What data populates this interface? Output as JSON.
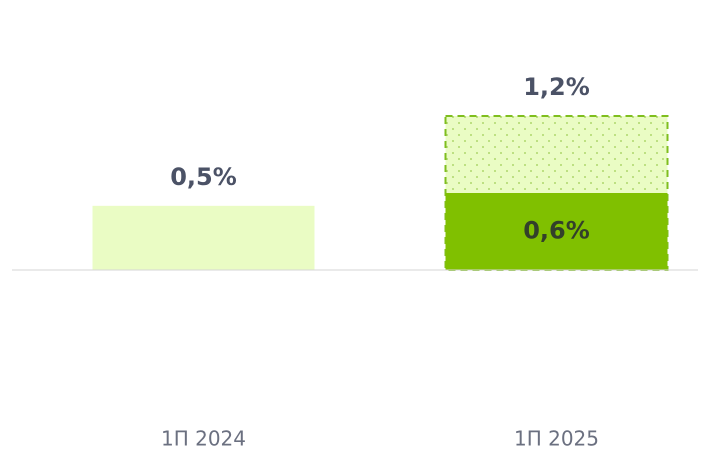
{
  "chart_data": {
    "type": "bar",
    "categories": [
      "1П 2024",
      "1П 2025"
    ],
    "ylim": [
      0,
      1.2
    ],
    "series": [
      {
        "values": [
          null,
          1.2
        ],
        "value_labels": [
          null,
          "1,2%"
        ],
        "color": "#eafcc4",
        "outline": "#7fbe1e",
        "pattern": "dotted"
      },
      {
        "values": [
          0.5,
          0.6
        ],
        "value_labels": [
          "0,5%",
          "0,6%"
        ],
        "colors": [
          "#eafcc4",
          "#80c000"
        ]
      }
    ]
  }
}
